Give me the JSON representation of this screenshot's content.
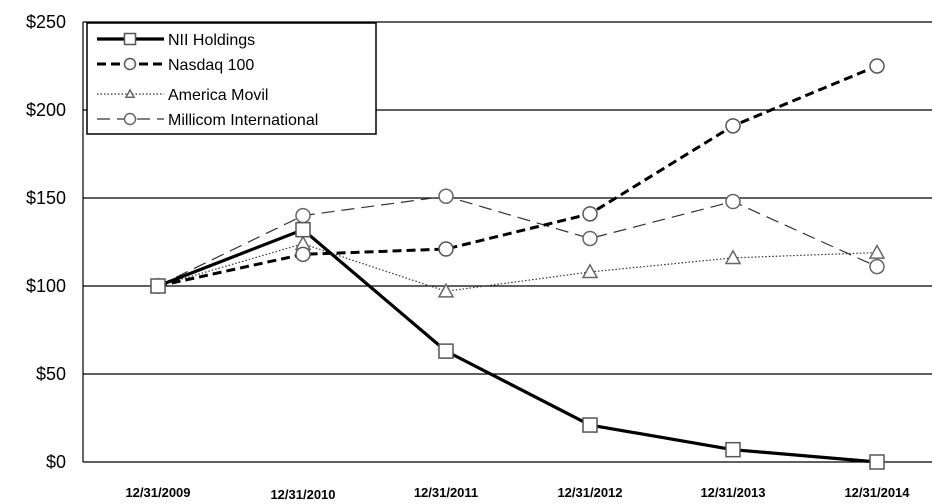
{
  "chart_data": {
    "type": "line",
    "title": "",
    "xlabel": "",
    "ylabel": "",
    "categories": [
      "12/31/2009",
      "12/31/2010",
      "12/31/2011",
      "12/31/2012",
      "12/31/2013",
      "12/31/2014"
    ],
    "y_ticks": [
      "$0",
      "$50",
      "$100",
      "$150",
      "$200",
      "$250"
    ],
    "ylim": [
      0,
      250
    ],
    "grid": "horizontal",
    "legend_position": "top-left",
    "series": [
      {
        "name": "NII Holdings",
        "values": [
          100,
          132,
          63,
          21,
          7,
          0
        ],
        "marker": "square",
        "line_style": "solid-thick",
        "color": "#000000"
      },
      {
        "name": "Nasdaq 100",
        "values": [
          100,
          118,
          121,
          141,
          191,
          225
        ],
        "marker": "circle",
        "line_style": "dashed-thick",
        "color": "#000000"
      },
      {
        "name": "America Movil",
        "values": [
          100,
          124,
          97,
          108,
          116,
          119
        ],
        "marker": "triangle",
        "line_style": "dotted",
        "color": "#000000"
      },
      {
        "name": "Millicom International",
        "values": [
          100,
          140,
          151,
          127,
          148,
          111
        ],
        "marker": "circle",
        "line_style": "long-dash",
        "color": "#000000"
      }
    ]
  }
}
